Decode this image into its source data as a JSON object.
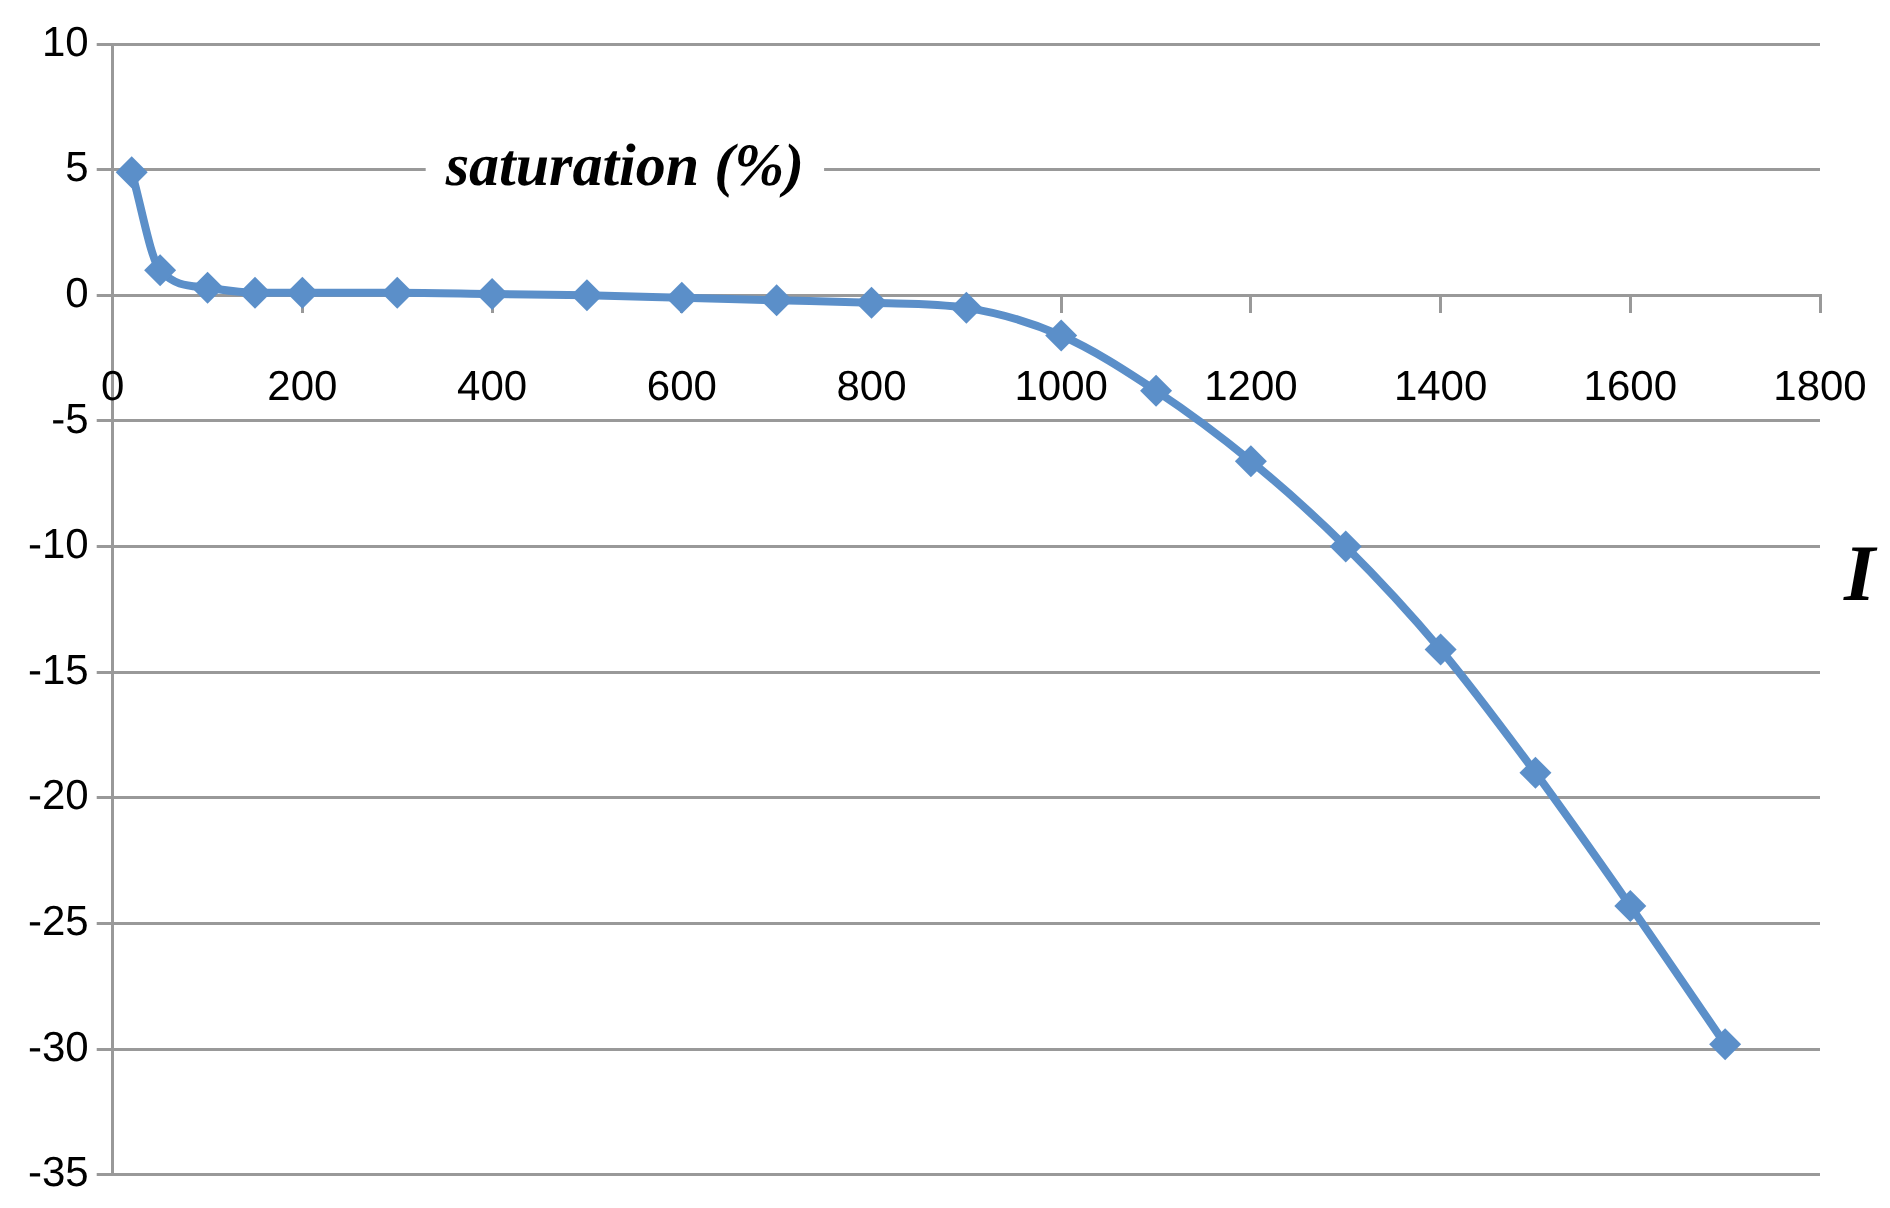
{
  "chart_data": {
    "type": "line",
    "title": "saturation (%)",
    "xlabel": "I",
    "x": [
      20,
      50,
      100,
      150,
      200,
      300,
      400,
      500,
      600,
      700,
      800,
      900,
      1000,
      1100,
      1200,
      1300,
      1400,
      1500,
      1600,
      1700
    ],
    "series": [
      {
        "color": "#5b8fc9",
        "values": [
          4.9,
          1.0,
          0.3,
          0.1,
          0.1,
          0.1,
          0.05,
          0,
          -0.1,
          -0.2,
          -0.3,
          -0.5,
          -1.6,
          -3.8,
          -6.6,
          -10,
          -14.1,
          -19,
          -24.3,
          -29.8
        ]
      }
    ],
    "xlim": [
      0,
      1800
    ],
    "xticks": [
      0,
      200,
      400,
      600,
      800,
      1000,
      1200,
      1400,
      1600,
      1800
    ],
    "ylim": [
      -35,
      10
    ],
    "yticks": [
      -35,
      -30,
      -25,
      -20,
      -15,
      -10,
      -5,
      0,
      5,
      10
    ],
    "grid": "y",
    "legend": false,
    "marker": "diamond",
    "line_style": "solid"
  }
}
